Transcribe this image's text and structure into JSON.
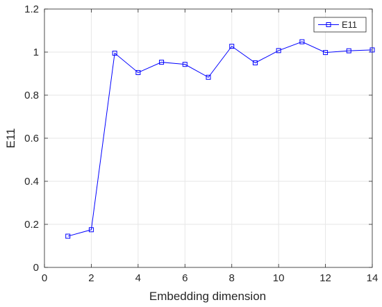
{
  "chart_data": {
    "type": "line",
    "title": "",
    "xlabel": "Embedding dimension",
    "ylabel": "E11",
    "xlim": [
      0,
      14
    ],
    "ylim": [
      0,
      1.2
    ],
    "xticks": [
      0,
      2,
      4,
      6,
      8,
      10,
      12,
      14
    ],
    "yticks": [
      0,
      0.2,
      0.4,
      0.6,
      0.8,
      1,
      1.2
    ],
    "xtick_labels": [
      "0",
      "2",
      "4",
      "6",
      "8",
      "10",
      "12",
      "14"
    ],
    "ytick_labels": [
      "0",
      "0.2",
      "0.4",
      "0.6",
      "0.8",
      "1",
      "1.2"
    ],
    "grid": true,
    "legend_position": "top-right",
    "x": [
      1,
      2,
      3,
      4,
      5,
      6,
      7,
      8,
      9,
      10,
      11,
      12,
      13,
      14
    ],
    "series": [
      {
        "name": "E11",
        "color": "#0000ff",
        "marker": "square",
        "values": [
          0.145,
          0.175,
          0.995,
          0.905,
          0.953,
          0.943,
          0.883,
          1.027,
          0.95,
          1.007,
          1.048,
          0.998,
          1.006,
          1.01
        ]
      }
    ]
  }
}
